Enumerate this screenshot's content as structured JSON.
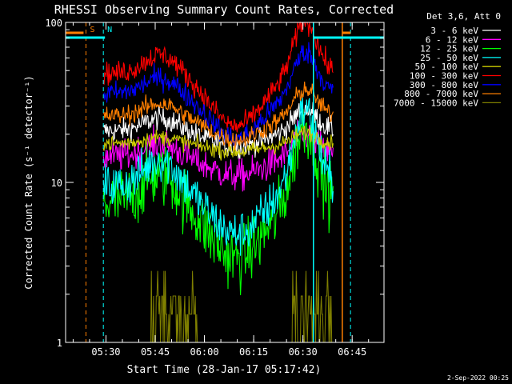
{
  "chart_data": {
    "type": "line",
    "title": "RHESSI Observing Summary Count Rates, Corrected",
    "xlabel": "Start Time (28-Jan-17 05:17:42)",
    "ylabel": "Corrected Count Rate (s⁻¹ detector⁻¹)",
    "yscale": "log",
    "ylim": [
      1,
      100
    ],
    "xlim_minutes": [
      0,
      97
    ],
    "x_ticks": [
      {
        "label": "05:30",
        "min": 12.3
      },
      {
        "label": "05:45",
        "min": 27.3
      },
      {
        "label": "06:00",
        "min": 42.3
      },
      {
        "label": "06:15",
        "min": 57.3
      },
      {
        "label": "06:30",
        "min": 72.3
      },
      {
        "label": "06:45",
        "min": 87.3
      }
    ],
    "y_ticks": [
      {
        "label": "1",
        "value": 1
      },
      {
        "label": "10",
        "value": 10
      },
      {
        "label": "100",
        "value": 100
      }
    ],
    "data_start_min": 11.5,
    "data_end_min": 81.5,
    "legend": {
      "title": "Det 3,6, Att 0",
      "position": "top-right outside plot"
    },
    "series": [
      {
        "name": "3 - 6 keV",
        "color": "#ffffff",
        "base": 21,
        "noise": 0.07,
        "bump1": 0.08,
        "dip": 0.1,
        "bump2": 0.08
      },
      {
        "name": "6 - 12 keV",
        "color": "#ff00ff",
        "base": 14.5,
        "noise": 0.1,
        "bump1": 0.08,
        "dip": 0.12,
        "bump2": 0.07
      },
      {
        "name": "12 - 25 keV",
        "color": "#00ff00",
        "base": 7.5,
        "noise": 0.2,
        "bump1": 0.18,
        "dip": 0.35,
        "bump2": 0.28
      },
      {
        "name": "25 - 50 keV",
        "color": "#00ffff",
        "base": 9.5,
        "noise": 0.14,
        "bump1": 0.17,
        "dip": 0.3,
        "bump2": 0.3
      },
      {
        "name": "50 - 100 keV",
        "color": "#cccc00",
        "base": 17.5,
        "noise": 0.05,
        "bump1": 0.04,
        "dip": 0.05,
        "bump2": 0.04
      },
      {
        "name": "100 - 300 keV",
        "color": "#ff0000",
        "base": 48,
        "noise": 0.07,
        "bump1": 0.12,
        "dip": 0.33,
        "bump2": 0.14
      },
      {
        "name": "300 - 800 keV",
        "color": "#0000ff",
        "base": 36,
        "noise": 0.07,
        "bump1": 0.1,
        "dip": 0.28,
        "bump2": 0.1
      },
      {
        "name": "800 - 7000 keV",
        "color": "#ff7f00",
        "base": 26,
        "noise": 0.06,
        "bump1": 0.08,
        "dip": 0.15,
        "bump2": 0.08
      },
      {
        "name": "7000 - 15000 keV",
        "color": "#808000",
        "base": 1.0,
        "noise": 0,
        "bump1": 0,
        "dip": 0,
        "bump2": 0,
        "spiky": true
      }
    ],
    "annotations": [
      {
        "label": "S",
        "color": "#ff7f00",
        "min": 6.2,
        "style": "dashed"
      },
      {
        "label": "N",
        "color": "#00ffff",
        "min": 11.5,
        "style": "dashed"
      },
      {
        "label": "",
        "color": "#00ffff",
        "min": 75.5,
        "style": "solid"
      },
      {
        "label": "",
        "color": "#ff7f00",
        "min": 84.3,
        "style": "solid"
      },
      {
        "label": "",
        "color": "#00ffff",
        "min": 86.8,
        "style": "dashed"
      }
    ],
    "footer_date": "2-Sep-2022 00:25"
  }
}
